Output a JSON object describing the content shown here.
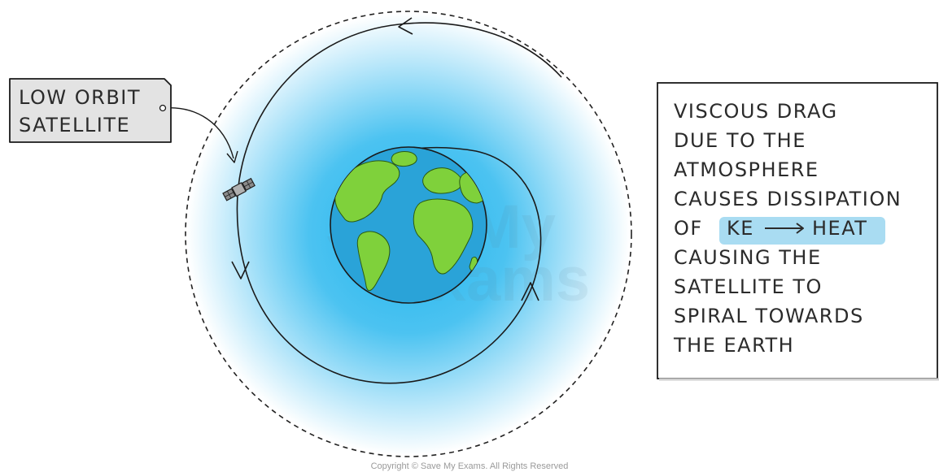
{
  "satellite_label": {
    "line1": "LOW ORBIT",
    "line2": "SATELLITE"
  },
  "explanation": {
    "lines_before": [
      "VISCOUS DRAG",
      "DUE TO THE",
      "ATMOSPHERE",
      "CAUSES DISSIPATION"
    ],
    "highlight_prefix": "OF",
    "highlight_from": "KE",
    "highlight_to": "HEAT",
    "lines_after": [
      "CAUSING THE",
      "SATELLITE TO",
      "SPIRAL TOWARDS",
      "THE EARTH"
    ]
  },
  "watermark": {
    "line1": "SaveMy",
    "line2": "Exams"
  },
  "copyright": "Copyright © Save My Exams. All Rights Reserved",
  "colors": {
    "atmosphere_inner": "#22b4ee",
    "atmosphere_outer": "#ffffff",
    "ocean": "#2aa3d8",
    "land": "#7fd13b",
    "label_box": "#e3e3e3",
    "highlight": "#a9dcf2"
  },
  "icons": {
    "satellite": "satellite-icon",
    "arrow": "arrow-right-icon"
  }
}
